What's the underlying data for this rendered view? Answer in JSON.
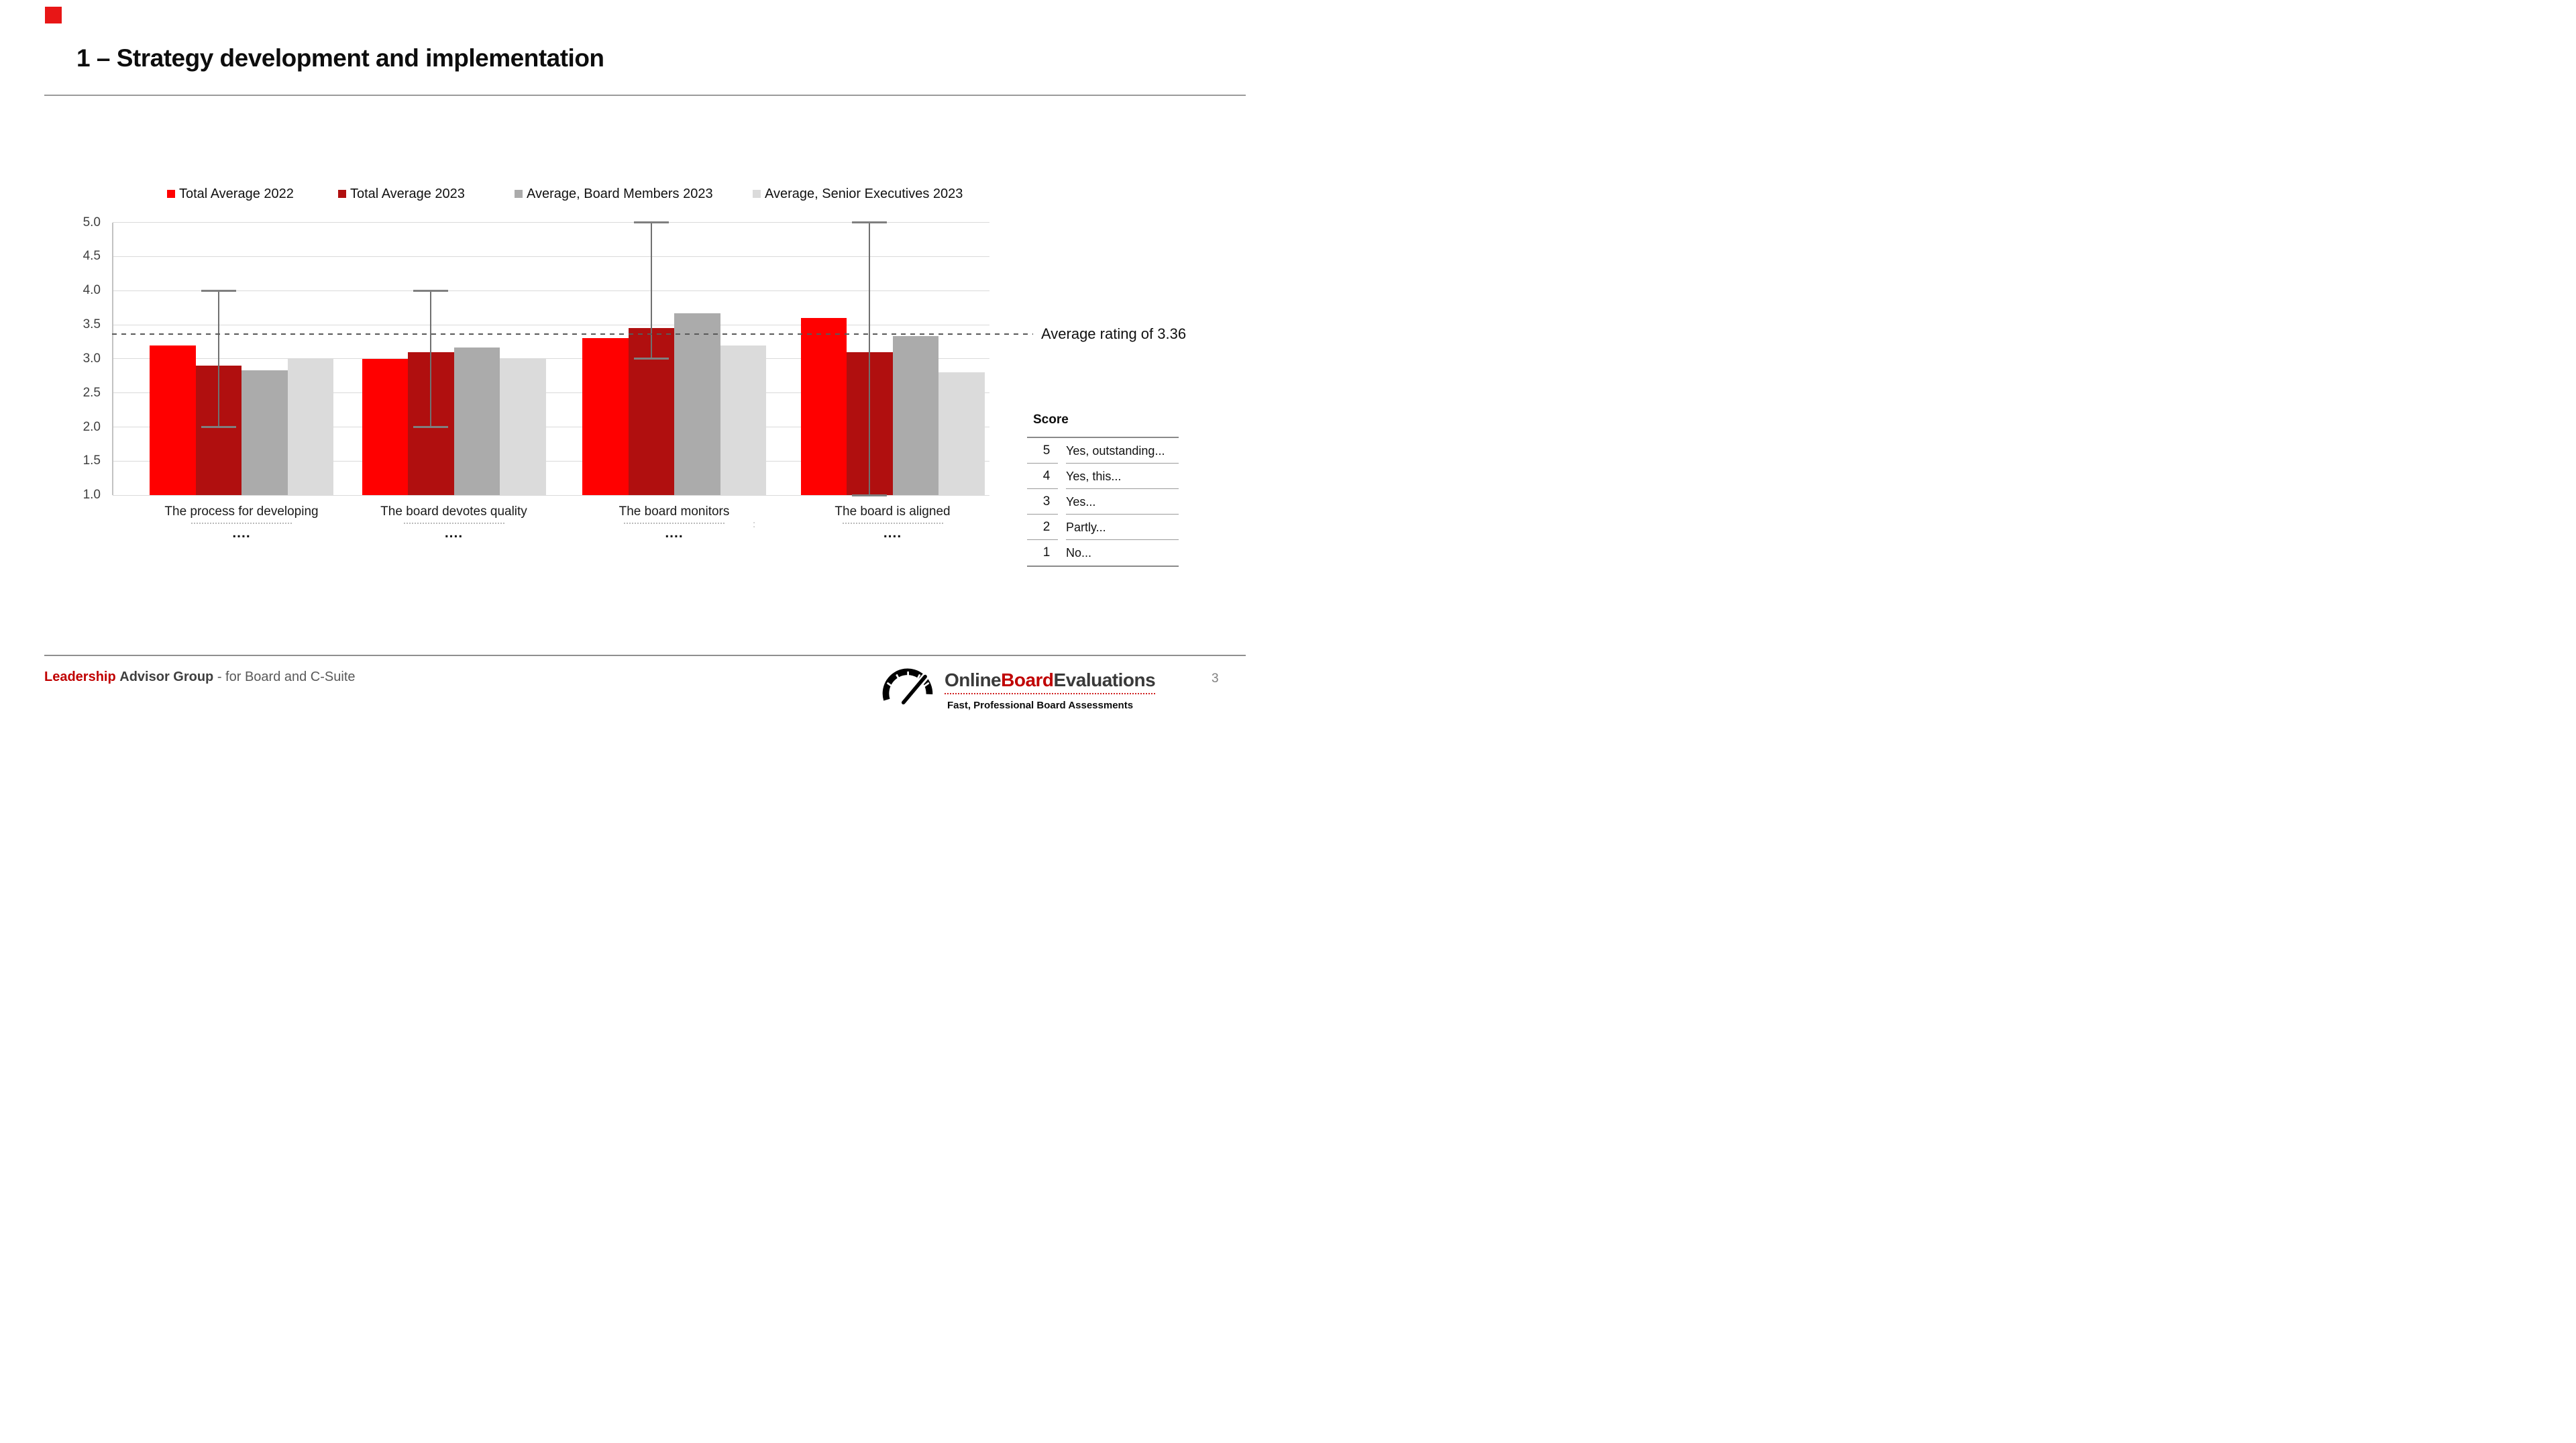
{
  "slide": {
    "title": "1 – Strategy development and implementation",
    "page_number": "3"
  },
  "chart_data": {
    "type": "bar",
    "title": "",
    "xlabel": "",
    "ylabel": "",
    "ylim": [
      1.0,
      5.0
    ],
    "y_step": 0.5,
    "y_tick_labels": [
      "5.0",
      "4.5",
      "4.0",
      "3.5",
      "3.0",
      "2.5",
      "2.0",
      "1.5",
      "1.0"
    ],
    "grid": true,
    "legend_position": "top",
    "categories": [
      {
        "label": "The process for developing",
        "more": "....",
        "hint_extra": ""
      },
      {
        "label": "The board devotes quality",
        "more": "....",
        "hint_extra": ""
      },
      {
        "label": "The board monitors",
        "more": "....",
        "hint_extra": ":"
      },
      {
        "label": "The board is aligned",
        "more": "....",
        "hint_extra": ""
      }
    ],
    "series": [
      {
        "name": "Total Average 2022",
        "color": "#ff0000",
        "values": [
          3.2,
          3.0,
          3.3,
          3.6
        ]
      },
      {
        "name": "Total Average 2023",
        "color": "#b00f0f",
        "values": [
          2.9,
          3.1,
          3.45,
          3.1
        ]
      },
      {
        "name": "Average, Board Members 2023",
        "color": "#ababab",
        "values": [
          2.83,
          3.17,
          3.67,
          3.33
        ]
      },
      {
        "name": "Average, Senior Executives 2023",
        "color": "#dbdbdb",
        "values": [
          3.0,
          3.0,
          3.2,
          2.8
        ]
      }
    ],
    "error_bars": {
      "on_series_index": 1,
      "ranges": [
        [
          2.0,
          4.0
        ],
        [
          2.0,
          4.0
        ],
        [
          3.0,
          5.0
        ],
        [
          1.0,
          5.0
        ]
      ]
    },
    "average_line": {
      "value": 3.36,
      "label": "Average rating of 3.36"
    }
  },
  "score_key": {
    "header": "Score",
    "rows": [
      {
        "score": "5",
        "label": "Yes, outstanding..."
      },
      {
        "score": "4",
        "label": "Yes, this..."
      },
      {
        "score": "3",
        "label": "Yes..."
      },
      {
        "score": "2",
        "label": "Partly..."
      },
      {
        "score": "1",
        "label": "No..."
      }
    ]
  },
  "footer": {
    "brand_red": "Leadership",
    "brand_rest": "Advisor Group",
    "brand_suffix": "- for Board and C-Suite",
    "logo_part1": "Online",
    "logo_part2": "Board",
    "logo_part3": "Evaluations",
    "tagline": "Fast, Professional Board Assessments"
  }
}
